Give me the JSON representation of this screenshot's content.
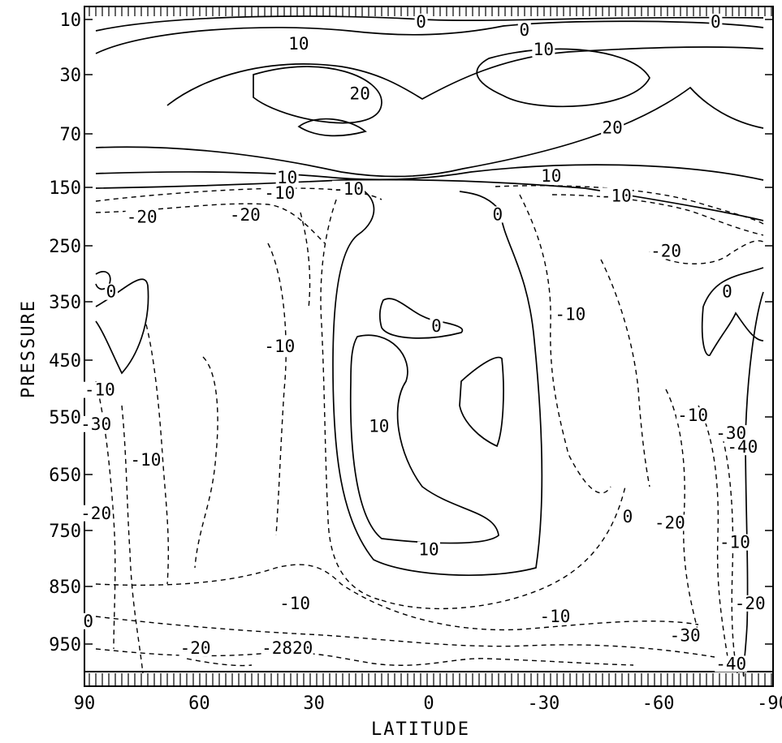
{
  "chart_data": {
    "type": "contour",
    "title": "",
    "xlabel": "LATITUDE",
    "ylabel": "PRESSURE",
    "xlim": [
      90,
      -90
    ],
    "ylim": [
      10,
      1000
    ],
    "x_ticks": [
      "90",
      "60",
      "30",
      "0",
      "-30",
      "-60",
      "-90"
    ],
    "y_ticks": [
      "10",
      "30",
      "70",
      "150",
      "250",
      "350",
      "450",
      "550",
      "650",
      "750",
      "850",
      "950"
    ],
    "line_style": {
      "positive_and_zero": "solid",
      "negative": "dashed"
    },
    "contour_labels": [
      {
        "text": "0",
        "lat": 2,
        "p": 12
      },
      {
        "text": "0",
        "lat": -25,
        "p": 15
      },
      {
        "text": "0",
        "lat": -75,
        "p": 12
      },
      {
        "text": "10",
        "lat": 34,
        "p": 20
      },
      {
        "text": "10",
        "lat": -30,
        "p": 22
      },
      {
        "text": "20",
        "lat": 18,
        "p": 45
      },
      {
        "text": "20",
        "lat": -48,
        "p": 68
      },
      {
        "text": "10",
        "lat": 37,
        "p": 140
      },
      {
        "text": "10",
        "lat": -32,
        "p": 138
      },
      {
        "text": "-10",
        "lat": 39,
        "p": 165
      },
      {
        "text": "-10",
        "lat": 21,
        "p": 158
      },
      {
        "text": "-10",
        "lat": -49,
        "p": 170
      },
      {
        "text": "-20",
        "lat": 75,
        "p": 206
      },
      {
        "text": "-20",
        "lat": 48,
        "p": 203
      },
      {
        "text": "-20",
        "lat": -62,
        "p": 265
      },
      {
        "text": "0",
        "lat": -18,
        "p": 202
      },
      {
        "text": "0",
        "lat": 83,
        "p": 338
      },
      {
        "text": "0",
        "lat": -78,
        "p": 338
      },
      {
        "text": "-10",
        "lat": -37,
        "p": 377
      },
      {
        "text": "-10",
        "lat": 39,
        "p": 432
      },
      {
        "text": "0",
        "lat": -2,
        "p": 397
      },
      {
        "text": "-10",
        "lat": 86,
        "p": 508
      },
      {
        "text": "10",
        "lat": 13,
        "p": 572
      },
      {
        "text": "-30",
        "lat": 87,
        "p": 568
      },
      {
        "text": "-10",
        "lat": 74,
        "p": 630
      },
      {
        "text": "-10",
        "lat": -69,
        "p": 553
      },
      {
        "text": "-30",
        "lat": -79,
        "p": 584
      },
      {
        "text": "-40",
        "lat": -82,
        "p": 608
      },
      {
        "text": "-20",
        "lat": 87,
        "p": 725
      },
      {
        "text": "0",
        "lat": -52,
        "p": 731
      },
      {
        "text": "-20",
        "lat": -63,
        "p": 742
      },
      {
        "text": "-10",
        "lat": -80,
        "p": 777
      },
      {
        "text": "10",
        "lat": 0,
        "p": 790
      },
      {
        "text": "-10",
        "lat": 35,
        "p": 885
      },
      {
        "text": "-20",
        "lat": -84,
        "p": 885
      },
      {
        "text": "-10",
        "lat": -33,
        "p": 908
      },
      {
        "text": "0",
        "lat": 89,
        "p": 916
      },
      {
        "text": "-30",
        "lat": -67,
        "p": 941
      },
      {
        "text": "-20",
        "lat": 61,
        "p": 963
      },
      {
        "text": "-2820",
        "lat": 37,
        "p": 963
      },
      {
        "text": "-40",
        "lat": -79,
        "p": 990
      }
    ]
  }
}
